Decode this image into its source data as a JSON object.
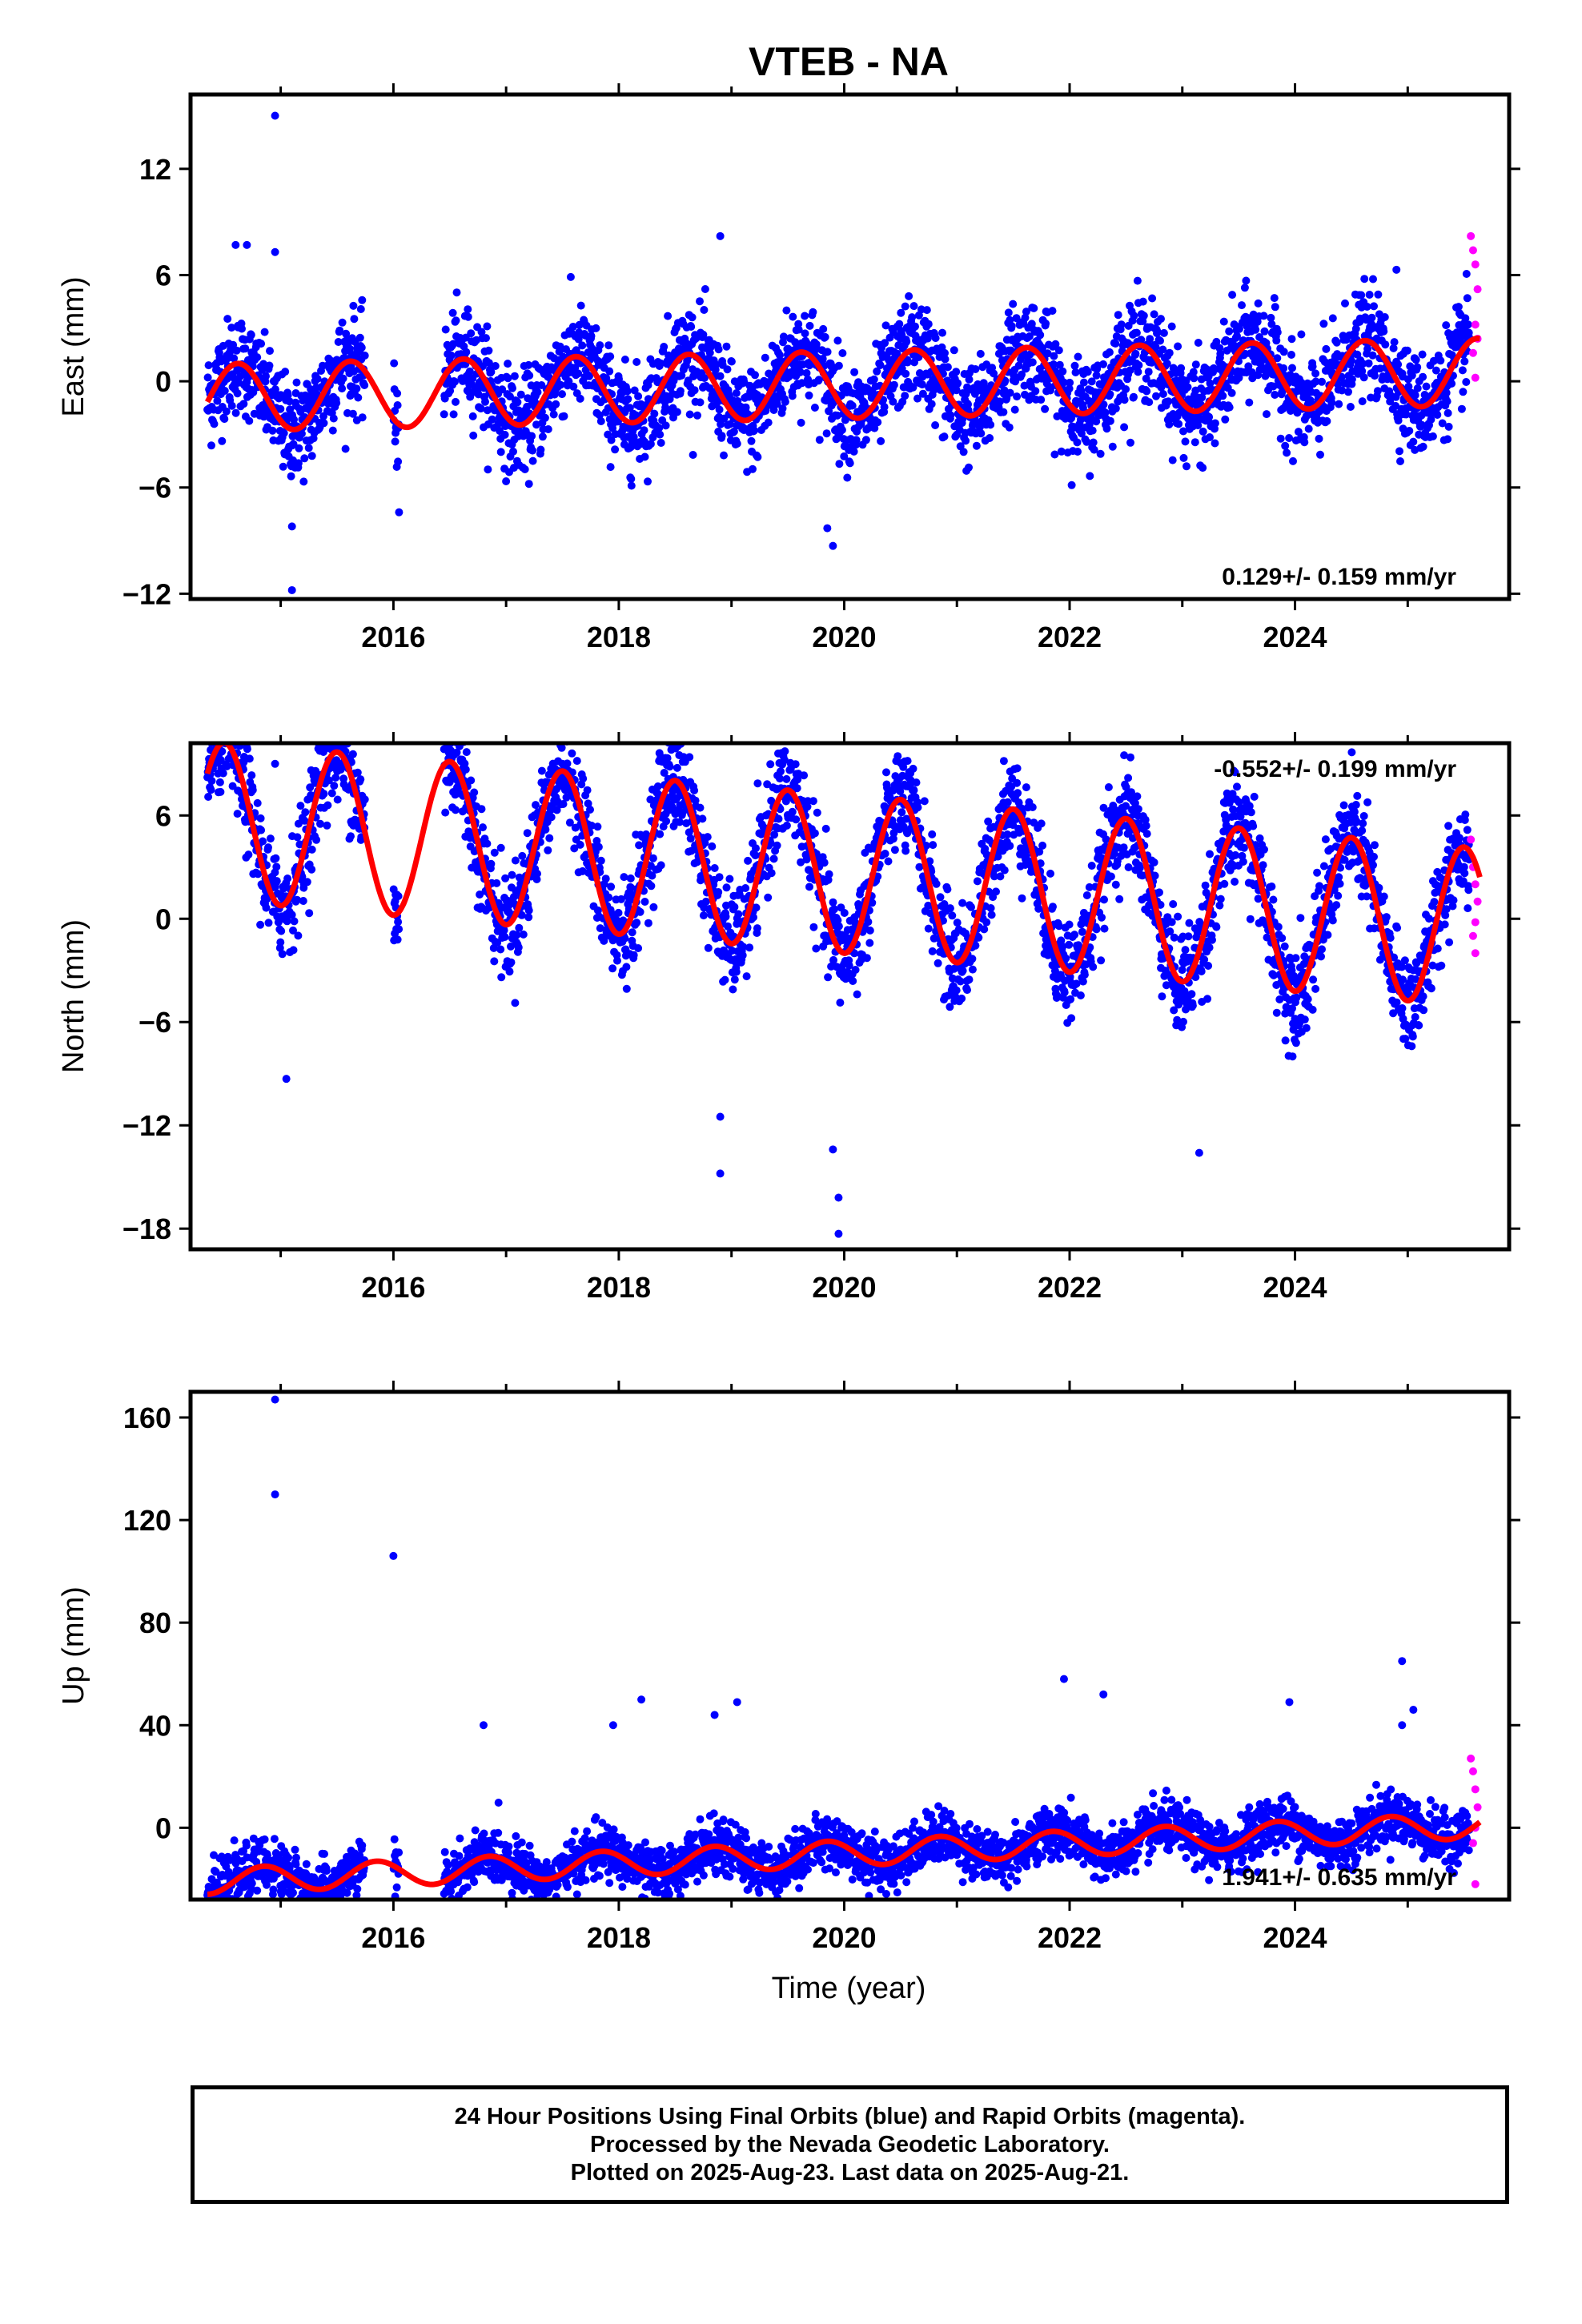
{
  "title": "VTEB - NA",
  "xlabel": "Time (year)",
  "footer": {
    "line1": "24 Hour Positions Using Final Orbits (blue) and Rapid Orbits (magenta).",
    "line2": "Processed by the Nevada Geodetic Laboratory.",
    "line3": "Plotted on 2025-Aug-23. Last data on 2025-Aug-21."
  },
  "colors": {
    "final_orbits": "#0000ff",
    "rapid_orbits": "#ff00ff",
    "model": "#ff0000"
  },
  "chart_data": [
    {
      "type": "scatter",
      "panel": "east",
      "ylabel": "East (mm)",
      "xlim": [
        2014.2,
        2025.9
      ],
      "ylim": [
        -12.3,
        16.2
      ],
      "yticks": [
        -12,
        -6,
        0,
        6,
        12
      ],
      "xticks": [
        2016,
        2018,
        2020,
        2022,
        2024
      ],
      "rate_text": "0.129+/- 0.159 mm/yr",
      "rate_position": "bottom-right",
      "data_start": 2014.35,
      "data_end": 2025.64,
      "rapid_start": 2025.55,
      "gaps": [
        [
          2015.75,
          2016.0
        ],
        [
          2016.05,
          2016.45
        ]
      ],
      "model": {
        "trend": 0.129,
        "amplitude": 1.9,
        "peak_phase": 0.62,
        "offset": -0.2
      },
      "scatter_sd": 1.4,
      "outliers": [
        [
          2014.95,
          15.0
        ],
        [
          2014.6,
          7.7
        ],
        [
          2014.7,
          7.7
        ],
        [
          2014.95,
          7.3
        ],
        [
          2018.9,
          8.2
        ],
        [
          2019.85,
          -8.3
        ],
        [
          2019.9,
          -9.3
        ],
        [
          2015.1,
          -11.8
        ],
        [
          2016.05,
          -7.4
        ],
        [
          2015.1,
          -8.2
        ],
        [
          2024.9,
          6.3
        ]
      ],
      "rapid_points": [
        [
          2025.56,
          8.2
        ],
        [
          2025.58,
          7.4
        ],
        [
          2025.6,
          6.6
        ],
        [
          2025.62,
          5.2
        ],
        [
          2025.6,
          3.2
        ],
        [
          2025.58,
          1.6
        ],
        [
          2025.6,
          0.2
        ],
        [
          2025.62,
          2.4
        ]
      ]
    },
    {
      "type": "scatter",
      "panel": "north",
      "ylabel": "North (mm)",
      "xlim": [
        2014.2,
        2025.9
      ],
      "ylim": [
        -19.2,
        10.2
      ],
      "yticks": [
        -18,
        -12,
        -6,
        0,
        6
      ],
      "xticks": [
        2016,
        2018,
        2020,
        2022,
        2024
      ],
      "rate_text": "-0.552+/- 0.199 mm/yr",
      "rate_position": "top-right",
      "data_start": 2014.35,
      "data_end": 2025.64,
      "rapid_start": 2025.55,
      "gaps": [
        [
          2015.75,
          2016.0
        ],
        [
          2016.05,
          2016.45
        ]
      ],
      "model": {
        "trend": -0.552,
        "amplitude": 4.6,
        "peak_phase": 0.5,
        "offset": 2.6
      },
      "scatter_sd": 1.5,
      "outliers": [
        [
          2014.45,
          9.5
        ],
        [
          2015.5,
          9.0
        ],
        [
          2019.45,
          9.0
        ],
        [
          2014.95,
          9.0
        ],
        [
          2015.05,
          -9.3
        ],
        [
          2018.9,
          -14.8
        ],
        [
          2018.9,
          -11.5
        ],
        [
          2019.9,
          -13.4
        ],
        [
          2019.95,
          -16.2
        ],
        [
          2019.95,
          -18.3
        ],
        [
          2023.15,
          -13.6
        ],
        [
          2017.5,
          9.0
        ]
      ],
      "rapid_points": [
        [
          2025.56,
          4.6
        ],
        [
          2025.58,
          3.0
        ],
        [
          2025.6,
          2.0
        ],
        [
          2025.62,
          1.0
        ],
        [
          2025.6,
          -0.2
        ],
        [
          2025.58,
          -1.0
        ],
        [
          2025.6,
          -2.0
        ]
      ]
    },
    {
      "type": "scatter",
      "panel": "up",
      "ylabel": "Up (mm)",
      "xlim": [
        2014.2,
        2025.9
      ],
      "ylim": [
        -28,
        170
      ],
      "yticks": [
        0,
        40,
        80,
        120,
        160
      ],
      "xticks": [
        2016,
        2018,
        2020,
        2022,
        2024
      ],
      "rate_text": "1.941+/- 0.635 mm/yr",
      "rate_position": "bottom-right",
      "data_start": 2014.35,
      "data_end": 2025.64,
      "rapid_start": 2025.55,
      "gaps": [
        [
          2015.75,
          2016.0
        ],
        [
          2016.05,
          2016.45
        ]
      ],
      "model": {
        "trend": 1.941,
        "amplitude": 5.0,
        "peak_phase": 0.85,
        "offset": -10
      },
      "scatter_sd": 5.0,
      "outliers": [
        [
          2014.95,
          167
        ],
        [
          2014.95,
          130
        ],
        [
          2016.0,
          106
        ],
        [
          2018.2,
          50
        ],
        [
          2018.85,
          44
        ],
        [
          2019.05,
          49
        ],
        [
          2021.95,
          58
        ],
        [
          2022.3,
          52
        ],
        [
          2023.95,
          49
        ],
        [
          2024.95,
          65
        ],
        [
          2024.95,
          40
        ],
        [
          2016.8,
          40
        ],
        [
          2017.95,
          40
        ],
        [
          2025.05,
          46
        ]
      ],
      "rapid_points": [
        [
          2025.56,
          27
        ],
        [
          2025.58,
          22
        ],
        [
          2025.6,
          15
        ],
        [
          2025.62,
          8
        ],
        [
          2025.6,
          0
        ],
        [
          2025.58,
          -6
        ],
        [
          2025.6,
          -22
        ]
      ]
    }
  ]
}
